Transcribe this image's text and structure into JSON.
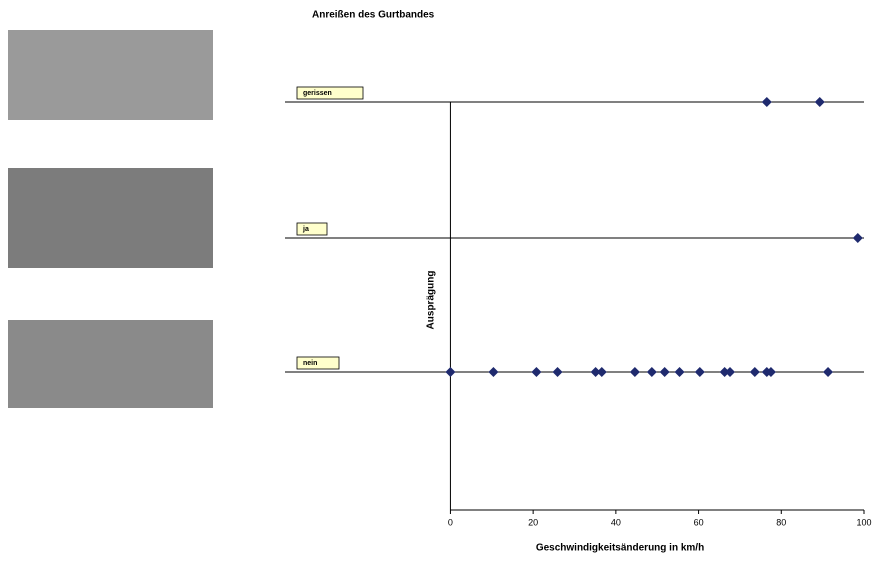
{
  "chart_data": {
    "type": "strip",
    "title": "Anreißen des Gurtbandes",
    "x_label": "Geschwindigkeitsänderung in km/h",
    "y_label": "Ausprägung",
    "xlim": [
      -40,
      100
    ],
    "xticks": [
      0,
      20,
      40,
      60,
      80,
      100
    ],
    "color": "#1f2a6e",
    "series": [
      {
        "name": "gerissen",
        "x": [
          76.5,
          89.3
        ]
      },
      {
        "name": "ja",
        "x": [
          98.5
        ]
      },
      {
        "name": "nein",
        "x": [
          0,
          10.4,
          20.8,
          25.9,
          35.1,
          36.6,
          44.6,
          48.7,
          51.8,
          55.4,
          60.3,
          66.3,
          67.6,
          73.6,
          76.5,
          77.5,
          91.3
        ]
      }
    ]
  }
}
